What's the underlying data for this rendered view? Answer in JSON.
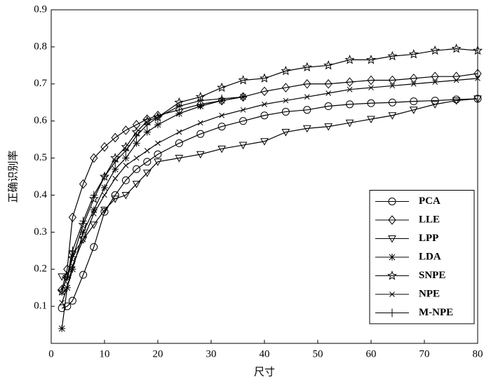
{
  "chart_data": {
    "type": "line",
    "x_label": "尺寸",
    "y_label": "正确识别率",
    "x": [
      2,
      3,
      4,
      6,
      8,
      10,
      12,
      14,
      16,
      18,
      20,
      24,
      28,
      32,
      36,
      40,
      44,
      48,
      52,
      56,
      60,
      64,
      68,
      72,
      76,
      80
    ],
    "series": [
      {
        "name": "PCA",
        "color": "#000000",
        "marker": "circle",
        "values": [
          0.095,
          0.1,
          0.115,
          0.185,
          0.26,
          0.355,
          0.4,
          0.44,
          0.47,
          0.49,
          0.51,
          0.54,
          0.565,
          0.585,
          0.6,
          0.615,
          0.625,
          0.63,
          0.64,
          0.645,
          0.648,
          0.65,
          0.653,
          0.655,
          0.658,
          0.66
        ]
      },
      {
        "name": "LLE",
        "color": "#000000",
        "marker": "diamond",
        "values": [
          0.145,
          0.2,
          0.34,
          0.43,
          0.5,
          0.53,
          0.555,
          0.575,
          0.59,
          0.605,
          0.615,
          0.63,
          0.645,
          0.655,
          0.665,
          0.68,
          0.69,
          0.7,
          0.7,
          0.705,
          0.71,
          0.71,
          0.715,
          0.72,
          0.72,
          0.728
        ]
      },
      {
        "name": "LPP",
        "color": "#000000",
        "marker": "triangle-down",
        "values": [
          0.18,
          0.17,
          0.24,
          0.28,
          0.32,
          0.36,
          0.39,
          0.4,
          0.43,
          0.46,
          0.49,
          0.5,
          0.51,
          0.525,
          0.535,
          0.545,
          0.57,
          0.58,
          0.585,
          0.595,
          0.605,
          0.615,
          0.63,
          0.645,
          0.655,
          0.66
        ]
      },
      {
        "name": "LDA",
        "color": "#000000",
        "marker": "asterisk",
        "values": [
          0.04,
          0.15,
          0.2,
          0.3,
          0.36,
          0.42,
          0.47,
          0.5,
          0.54,
          0.57,
          0.59,
          0.62,
          0.64,
          0.655,
          0.665,
          null,
          null,
          null,
          null,
          null,
          null,
          null,
          null,
          null,
          null,
          null
        ]
      },
      {
        "name": "SNPE",
        "color": "#000000",
        "marker": "star",
        "values": [
          0.14,
          0.18,
          0.23,
          0.32,
          0.39,
          0.45,
          0.5,
          0.53,
          0.57,
          0.6,
          0.61,
          0.65,
          0.665,
          0.69,
          0.71,
          0.715,
          0.735,
          0.745,
          0.75,
          0.765,
          0.765,
          0.775,
          0.78,
          0.79,
          0.795,
          0.79
        ]
      },
      {
        "name": "NPE",
        "color": "#000000",
        "marker": "x",
        "values": [
          0.11,
          0.15,
          0.21,
          0.28,
          0.35,
          0.4,
          0.445,
          0.48,
          0.5,
          0.52,
          0.54,
          0.57,
          0.595,
          0.615,
          0.63,
          0.645,
          0.655,
          0.665,
          0.675,
          0.685,
          0.69,
          0.695,
          0.7,
          0.705,
          0.71,
          0.715
        ]
      },
      {
        "name": "M-NPE",
        "color": "#000000",
        "marker": "plus",
        "values": [
          0.14,
          0.18,
          0.25,
          0.33,
          0.4,
          0.45,
          0.49,
          0.52,
          0.56,
          0.59,
          0.61,
          0.64,
          0.655,
          0.66,
          0.665,
          null,
          null,
          null,
          null,
          null,
          null,
          null,
          null,
          null,
          null,
          null
        ]
      }
    ],
    "xlim": [
      0,
      80
    ],
    "xticks": [
      0,
      10,
      20,
      30,
      40,
      50,
      60,
      70,
      80
    ],
    "ylim": [
      0,
      0.9
    ],
    "yticks": [
      0.1,
      0.2,
      0.3,
      0.4,
      0.5,
      0.6,
      0.7,
      0.8,
      0.9
    ],
    "legend": "lower right"
  }
}
